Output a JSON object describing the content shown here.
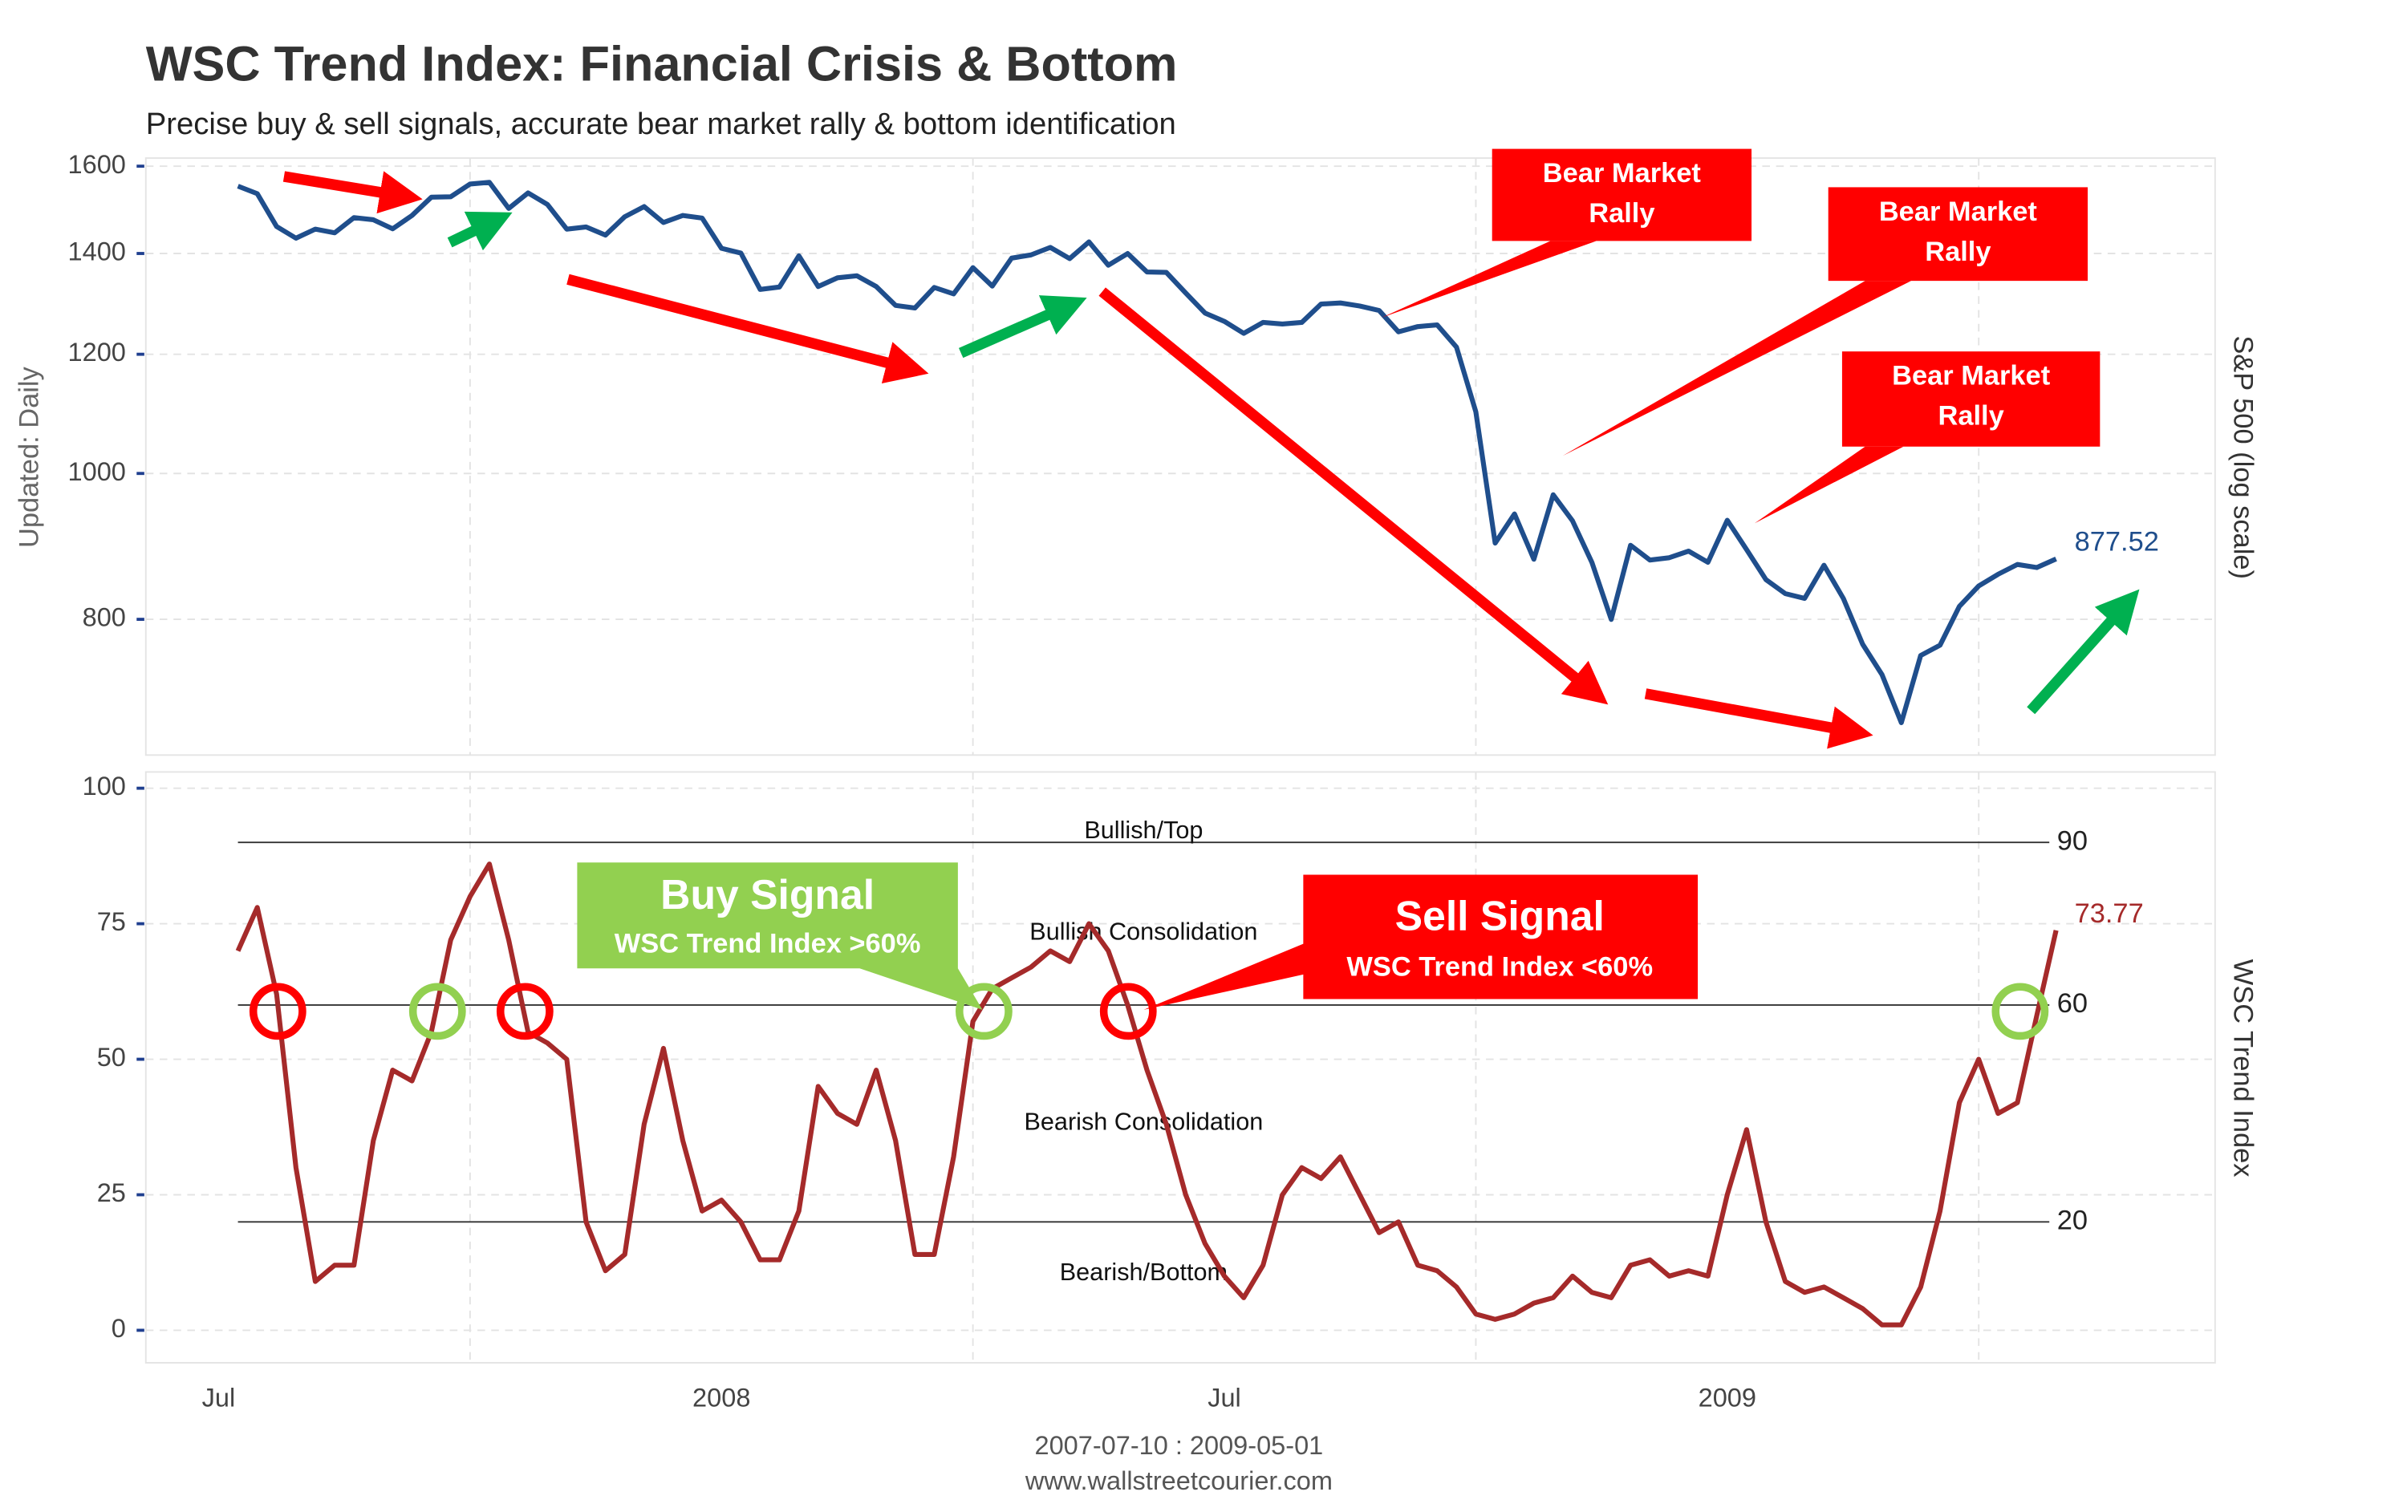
{
  "title": "WSC Trend Index: Financial Crisis & Bottom",
  "subtitle": "Precise buy & sell signals, accurate bear market rally & bottom identification",
  "y_label": "Updated: Daily",
  "footer": [
    "2007-07-10 : 2009-05-01",
    "www.wallstreetcourier.com"
  ],
  "rally_callouts": [
    {
      "lines": [
        "Bear Market",
        "Rally"
      ]
    },
    {
      "lines": [
        "Bear Market",
        "Rally"
      ]
    },
    {
      "lines": [
        "Bear Market",
        "Rally"
      ]
    }
  ],
  "buy_signal": {
    "title": "Buy Signal",
    "text": "WSC Trend Index >60%"
  },
  "sell_signal": {
    "title": "Sell Signal",
    "text": "WSC Trend Index <60%"
  },
  "chart_data": [
    {
      "type": "line",
      "y_label": "S&P 500 (log scale)",
      "log_scale": true,
      "grid": true,
      "color": "#1f4e8c",
      "categories": [
        "Jul",
        null,
        null,
        null,
        null,
        null,
        null,
        null,
        null,
        null,
        null,
        null,
        null,
        null,
        null,
        null,
        null,
        null,
        null,
        null,
        null,
        null,
        null,
        null,
        null,
        null,
        "2008",
        null,
        null,
        null,
        null,
        null,
        null,
        null,
        null,
        null,
        null,
        null,
        null,
        null,
        null,
        null,
        null,
        null,
        null,
        null,
        null,
        null,
        null,
        null,
        null,
        null,
        "Jul",
        null,
        null,
        null,
        null,
        null,
        null,
        null,
        null,
        null,
        null,
        null,
        null,
        null,
        null,
        null,
        null,
        null,
        null,
        null,
        null,
        null,
        null,
        null,
        null,
        null,
        "2009",
        null,
        null,
        null,
        null,
        null,
        null,
        null,
        null,
        null,
        null,
        null,
        null,
        null,
        null,
        null,
        null,
        null
      ],
      "values": [
        null,
        1552,
        1534,
        1459,
        1433,
        1453,
        1445,
        1479,
        1474,
        1454,
        1484,
        1526,
        1527,
        1557,
        1561,
        1500,
        1536,
        1509,
        1453,
        1458,
        1440,
        1481,
        1504,
        1468,
        1484,
        1478,
        1411,
        1401,
        1325,
        1330,
        1395,
        1331,
        1349,
        1353,
        1331,
        1293,
        1288,
        1329,
        1316,
        1370,
        1332,
        1390,
        1397,
        1413,
        1389,
        1425,
        1375,
        1400,
        1361,
        1360,
        1318,
        1278,
        1262,
        1239,
        1260,
        1257,
        1260,
        1296,
        1298,
        1292,
        1283,
        1242,
        1252,
        1255,
        1213,
        1099,
        899,
        940,
        877,
        968,
        930,
        873,
        800,
        896,
        876,
        879,
        888,
        873,
        931,
        890,
        850,
        832,
        826,
        869,
        826,
        770,
        735,
        683,
        757,
        769,
        816,
        842,
        857,
        870,
        866,
        877.52
      ],
      "ylim": [
        650,
        1620
      ],
      "yticks": [
        800,
        1000,
        1200,
        1400,
        1600
      ]
    },
    {
      "type": "line",
      "y_label": "WSC Trend Index",
      "grid": true,
      "color": "#a52a2a",
      "categories": [
        "Jul",
        null,
        null,
        null,
        null,
        null,
        null,
        null,
        null,
        null,
        null,
        null,
        null,
        null,
        null,
        null,
        null,
        null,
        null,
        null,
        null,
        null,
        null,
        null,
        null,
        null,
        "2008",
        null,
        null,
        null,
        null,
        null,
        null,
        null,
        null,
        null,
        null,
        null,
        null,
        null,
        null,
        null,
        null,
        null,
        null,
        null,
        null,
        null,
        null,
        null,
        null,
        null,
        "Jul",
        null,
        null,
        null,
        null,
        null,
        null,
        null,
        null,
        null,
        null,
        null,
        null,
        null,
        null,
        null,
        null,
        null,
        null,
        null,
        null,
        null,
        null,
        null,
        null,
        null,
        "2009",
        null,
        null,
        null,
        null,
        null,
        null,
        null,
        null,
        null,
        null,
        null,
        null,
        null,
        null,
        null,
        null,
        null
      ],
      "values": [
        null,
        70,
        78,
        62,
        30,
        9,
        12,
        12,
        35,
        48,
        46,
        55,
        72,
        80,
        86,
        72,
        55,
        53,
        50,
        20,
        11,
        14,
        38,
        52,
        35,
        22,
        24,
        20,
        13,
        13,
        22,
        45,
        40,
        38,
        48,
        35,
        14,
        14,
        32,
        57,
        63,
        65,
        67,
        70,
        68,
        75,
        70,
        60,
        48,
        38,
        25,
        16,
        10,
        6,
        12,
        25,
        30,
        28,
        32,
        25,
        18,
        20,
        12,
        11,
        8,
        3,
        2,
        3,
        5,
        6,
        10,
        7,
        6,
        12,
        13,
        10,
        11,
        10,
        25,
        37,
        20,
        9,
        7,
        8,
        6,
        4,
        1,
        1,
        8,
        22,
        42,
        50,
        40,
        42,
        58,
        73.77
      ],
      "ylim": [
        -6,
        103
      ],
      "yticks": [
        0,
        25,
        50,
        75,
        100
      ],
      "reference_lines": [
        90,
        60,
        20
      ],
      "zones": [
        "Bullish/Top",
        "Bullish Consolidation",
        "Bearish Consolidation",
        "Bearish/Bottom"
      ]
    }
  ]
}
